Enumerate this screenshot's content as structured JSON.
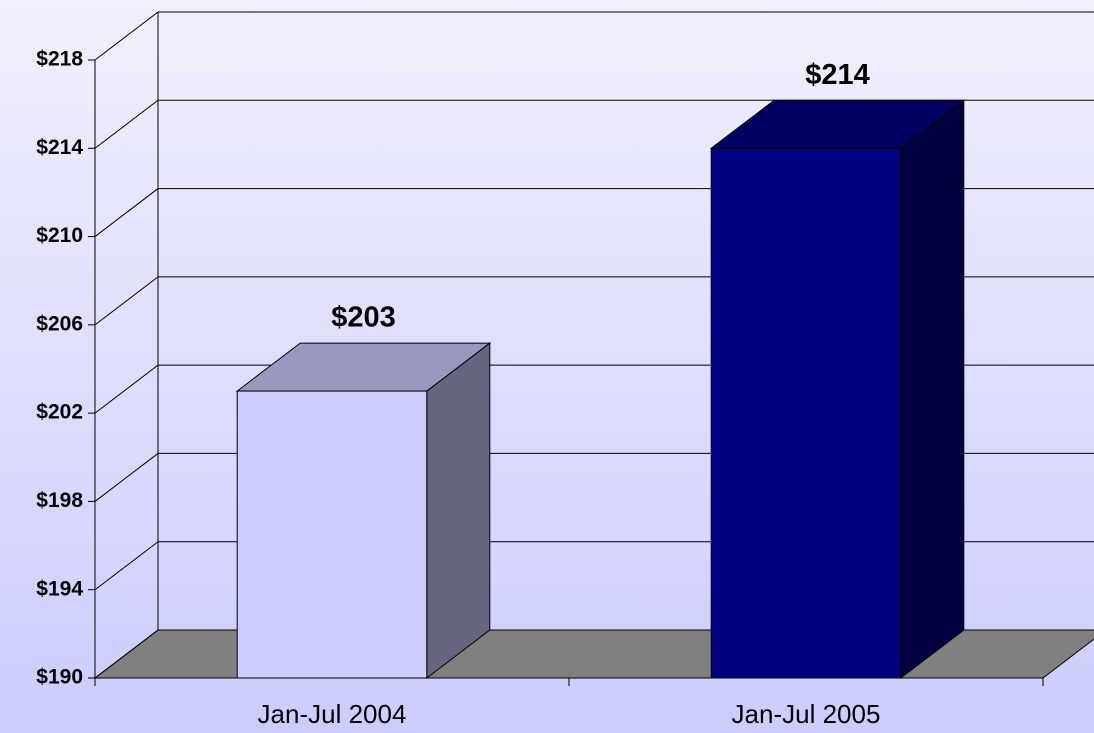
{
  "chart_data": {
    "type": "bar3d",
    "categories": [
      "Jan-Jul 2004",
      "Jan-Jul 2005"
    ],
    "values": [
      203,
      214
    ],
    "value_labels": [
      "$203",
      "$214"
    ],
    "colors": [
      "#ccccff",
      "#000080"
    ],
    "ylim": [
      190,
      218
    ],
    "yticks": [
      {
        "value": 190,
        "label": "$190"
      },
      {
        "value": 194,
        "label": "$194"
      },
      {
        "value": 198,
        "label": "$198"
      },
      {
        "value": 202,
        "label": "$202"
      },
      {
        "value": 206,
        "label": "$206"
      },
      {
        "value": 210,
        "label": "$210"
      },
      {
        "value": 214,
        "label": "$214"
      },
      {
        "value": 218,
        "label": "$218"
      }
    ],
    "grid": true
  }
}
